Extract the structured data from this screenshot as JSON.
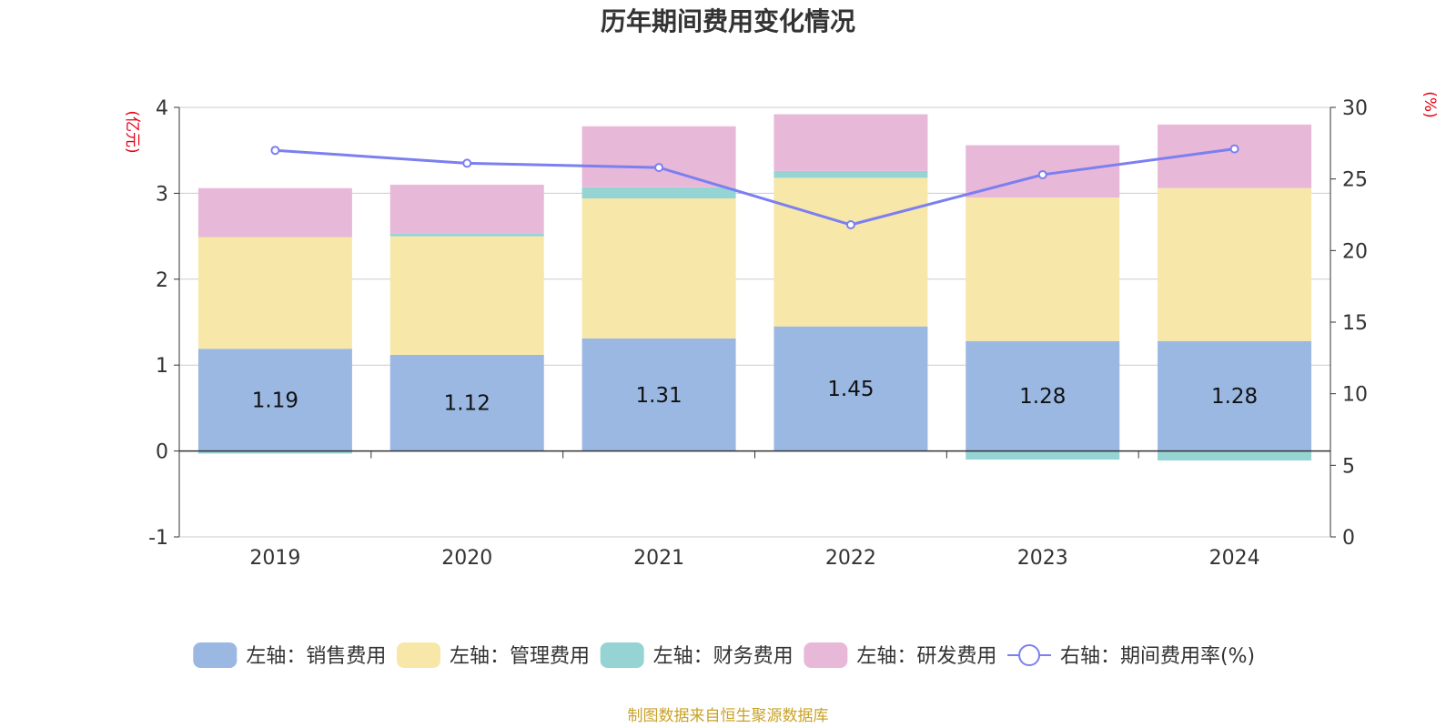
{
  "chart_data": {
    "type": "bar",
    "title": "历年期间费用变化情况",
    "categories": [
      "2019",
      "2020",
      "2021",
      "2022",
      "2023",
      "2024"
    ],
    "y_left": {
      "unit_label": "(亿元)",
      "range": [
        -1,
        4
      ],
      "ticks": [
        "-1",
        "0",
        "1",
        "2",
        "3",
        "4"
      ]
    },
    "y_right": {
      "unit_label": "(%)",
      "range": [
        0,
        30
      ],
      "ticks": [
        "0",
        "5",
        "10",
        "15",
        "20",
        "25",
        "30"
      ]
    },
    "grid": true,
    "legend_position": "bottom",
    "series": [
      {
        "name": "左轴：销售费用",
        "kind": "bar",
        "axis": "left",
        "color": "#9bb8e2",
        "values": [
          1.19,
          1.12,
          1.31,
          1.45,
          1.28,
          1.28
        ],
        "labels": [
          "1.19",
          "1.12",
          "1.31",
          "1.45",
          "1.28",
          "1.28"
        ]
      },
      {
        "name": "左轴：管理费用",
        "kind": "bar",
        "axis": "left",
        "color": "#f7e7a8",
        "values": [
          1.3,
          1.38,
          1.63,
          1.73,
          1.67,
          1.78
        ]
      },
      {
        "name": "左轴：财务费用",
        "kind": "bar",
        "axis": "left",
        "color": "#96d3d3",
        "values": [
          -0.03,
          0.03,
          0.13,
          0.08,
          -0.1,
          -0.11
        ]
      },
      {
        "name": "左轴：研发费用",
        "kind": "bar",
        "axis": "left",
        "color": "#e8b8d8",
        "values": [
          0.57,
          0.57,
          0.71,
          0.66,
          0.61,
          0.74
        ]
      },
      {
        "name": "右轴：期间费用率(%)",
        "kind": "line",
        "axis": "right",
        "color": "#7b7ff0",
        "values": [
          27.0,
          26.1,
          25.8,
          21.8,
          25.3,
          27.1
        ]
      }
    ],
    "source_note": "制图数据来自恒生聚源数据库"
  }
}
